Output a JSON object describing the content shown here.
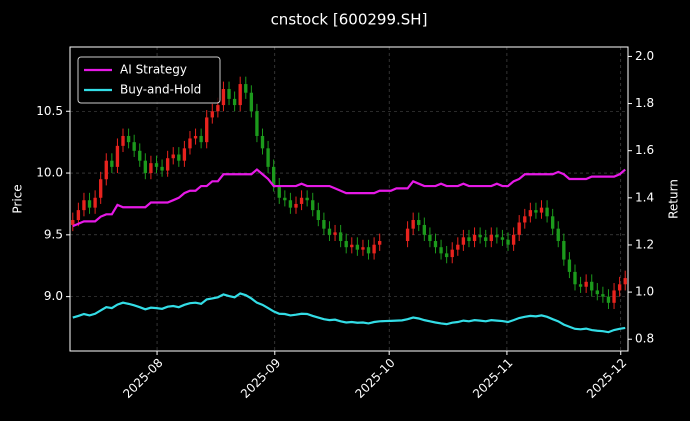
{
  "chart_data": {
    "type": "candlestick",
    "title": "cnstock [600299.SH]",
    "ylabel": "Price",
    "y2label": "Return",
    "categories": [
      null,
      null,
      null,
      null,
      null,
      null,
      null,
      null,
      null,
      null,
      null,
      null,
      null,
      null,
      null,
      null,
      null,
      null,
      null,
      null,
      null,
      null,
      null,
      null,
      null,
      null,
      null,
      null,
      null,
      null,
      null,
      null,
      null,
      null,
      null,
      null,
      null,
      null,
      null,
      null,
      null,
      null,
      null,
      null,
      null,
      null,
      null,
      null,
      null,
      null,
      null,
      null,
      null,
      null,
      null,
      null,
      null,
      null,
      null,
      null,
      null,
      null,
      null,
      null,
      null,
      null,
      null,
      null,
      null,
      null,
      null,
      null,
      null,
      null,
      null,
      null,
      null,
      null,
      null,
      null,
      null,
      null,
      null,
      null,
      null,
      null,
      null,
      null,
      null,
      null,
      null,
      null,
      null,
      null,
      null,
      null,
      null,
      null,
      null,
      null
    ],
    "open": [
      9.58,
      9.62,
      9.7,
      9.78,
      9.72,
      9.8,
      9.95,
      10.1,
      10.05,
      10.22,
      10.3,
      10.25,
      10.18,
      10.1,
      10.0,
      10.08,
      10.05,
      10.02,
      10.12,
      10.15,
      10.1,
      10.2,
      10.28,
      10.3,
      10.25,
      10.45,
      10.5,
      10.55,
      10.68,
      10.6,
      10.55,
      10.72,
      10.65,
      10.5,
      10.3,
      10.2,
      10.05,
      9.9,
      9.8,
      9.78,
      9.72,
      9.75,
      9.8,
      9.78,
      9.7,
      9.62,
      9.55,
      9.5,
      9.52,
      9.45,
      9.4,
      9.42,
      9.38,
      9.4,
      9.35,
      9.42,
      null,
      null,
      null,
      null,
      9.45,
      9.55,
      9.62,
      9.58,
      9.5,
      9.45,
      9.4,
      9.35,
      9.32,
      9.38,
      9.42,
      9.48,
      9.45,
      9.5,
      9.48,
      9.45,
      9.5,
      9.48,
      9.46,
      9.42,
      9.5,
      9.6,
      9.65,
      9.7,
      9.68,
      9.72,
      9.65,
      9.55,
      9.45,
      9.3,
      9.2,
      9.1,
      9.08,
      9.12,
      9.05,
      9.02,
      9.0,
      8.95,
      9.05,
      9.1
    ],
    "high": [
      9.68,
      9.76,
      9.84,
      9.84,
      9.86,
      10.01,
      10.16,
      10.16,
      10.28,
      10.36,
      10.36,
      10.31,
      10.24,
      10.16,
      10.14,
      10.14,
      10.11,
      10.18,
      10.21,
      10.21,
      10.26,
      10.34,
      10.36,
      10.36,
      10.51,
      10.56,
      10.61,
      10.74,
      10.74,
      10.66,
      10.78,
      10.78,
      10.71,
      10.56,
      10.36,
      10.26,
      10.11,
      9.96,
      9.86,
      9.84,
      9.81,
      9.86,
      9.86,
      9.84,
      9.76,
      9.68,
      9.61,
      9.58,
      9.58,
      9.51,
      9.48,
      9.48,
      9.46,
      9.46,
      9.48,
      9.51,
      null,
      null,
      null,
      null,
      9.61,
      9.68,
      9.68,
      9.64,
      9.56,
      9.51,
      9.46,
      9.41,
      9.44,
      9.48,
      9.54,
      9.54,
      9.56,
      9.56,
      9.54,
      9.56,
      9.56,
      9.54,
      9.52,
      9.56,
      9.66,
      9.71,
      9.76,
      9.76,
      9.78,
      9.78,
      9.71,
      9.61,
      9.51,
      9.36,
      9.26,
      9.16,
      9.18,
      9.18,
      9.11,
      9.08,
      9.06,
      9.11,
      9.16,
      9.21
    ],
    "low": [
      9.53,
      9.57,
      9.65,
      9.67,
      9.67,
      9.75,
      9.9,
      10.0,
      10.0,
      10.17,
      10.2,
      10.13,
      10.05,
      9.95,
      9.95,
      10.0,
      9.97,
      9.97,
      10.07,
      10.05,
      10.05,
      10.15,
      10.23,
      10.2,
      10.2,
      10.4,
      10.45,
      10.5,
      10.55,
      10.5,
      10.5,
      10.6,
      10.45,
      10.25,
      10.15,
      10.0,
      9.85,
      9.75,
      9.73,
      9.67,
      9.67,
      9.7,
      9.73,
      9.65,
      9.57,
      9.5,
      9.45,
      9.45,
      9.4,
      9.35,
      9.35,
      9.33,
      9.33,
      9.3,
      9.3,
      9.37,
      null,
      null,
      null,
      null,
      9.4,
      9.5,
      9.53,
      9.45,
      9.4,
      9.35,
      9.3,
      9.27,
      9.27,
      9.33,
      9.37,
      9.4,
      9.4,
      9.43,
      9.4,
      9.4,
      9.43,
      9.41,
      9.37,
      9.37,
      9.45,
      9.55,
      9.6,
      9.63,
      9.63,
      9.6,
      9.5,
      9.4,
      9.25,
      9.15,
      9.05,
      9.03,
      9.03,
      9.0,
      8.97,
      8.95,
      8.9,
      8.9,
      9.0,
      9.05
    ],
    "close": [
      9.62,
      9.7,
      9.78,
      9.72,
      9.8,
      9.95,
      10.1,
      10.05,
      10.22,
      10.3,
      10.25,
      10.18,
      10.1,
      10.0,
      10.08,
      10.05,
      10.02,
      10.12,
      10.15,
      10.1,
      10.2,
      10.28,
      10.3,
      10.25,
      10.45,
      10.5,
      10.55,
      10.68,
      10.6,
      10.55,
      10.72,
      10.65,
      10.5,
      10.3,
      10.2,
      10.05,
      9.9,
      9.8,
      9.78,
      9.72,
      9.75,
      9.8,
      9.78,
      9.7,
      9.62,
      9.55,
      9.5,
      9.52,
      9.45,
      9.4,
      9.42,
      9.38,
      9.4,
      9.35,
      9.42,
      9.45,
      null,
      null,
      null,
      null,
      9.55,
      9.62,
      9.58,
      9.5,
      9.45,
      9.4,
      9.35,
      9.32,
      9.38,
      9.42,
      9.48,
      9.45,
      9.5,
      9.48,
      9.45,
      9.5,
      9.48,
      9.46,
      9.42,
      9.5,
      9.6,
      9.65,
      9.7,
      9.68,
      9.72,
      9.65,
      9.55,
      9.45,
      9.3,
      9.2,
      9.1,
      9.08,
      9.12,
      9.05,
      9.02,
      9.0,
      8.95,
      9.05,
      9.1,
      9.15
    ],
    "up_color": "#e8231e",
    "down_color": "#1c9a1c",
    "series": [
      {
        "name": "AI Strategy",
        "color": "#e619e6",
        "axis": "y2",
        "values": [
          1.28,
          1.29,
          1.3,
          1.3,
          1.3,
          1.32,
          1.33,
          1.33,
          1.37,
          1.36,
          1.36,
          1.36,
          1.36,
          1.36,
          1.38,
          1.38,
          1.38,
          1.38,
          1.39,
          1.4,
          1.42,
          1.43,
          1.43,
          1.45,
          1.45,
          1.47,
          1.47,
          1.5,
          1.5,
          1.5,
          1.5,
          1.5,
          1.5,
          1.52,
          1.5,
          1.48,
          1.45,
          1.45,
          1.45,
          1.45,
          1.45,
          1.46,
          1.45,
          1.45,
          1.45,
          1.45,
          1.45,
          1.44,
          1.43,
          1.42,
          1.42,
          1.42,
          1.42,
          1.42,
          1.42,
          1.43,
          1.43,
          1.43,
          1.44,
          1.44,
          1.44,
          1.47,
          1.46,
          1.45,
          1.45,
          1.45,
          1.46,
          1.45,
          1.45,
          1.45,
          1.46,
          1.45,
          1.45,
          1.45,
          1.45,
          1.45,
          1.46,
          1.45,
          1.45,
          1.47,
          1.48,
          1.5,
          1.5,
          1.5,
          1.5,
          1.5,
          1.5,
          1.51,
          1.5,
          1.48,
          1.48,
          1.48,
          1.48,
          1.49,
          1.49,
          1.49,
          1.49,
          1.49,
          1.5,
          1.52
        ]
      },
      {
        "name": "Buy-and-Hold",
        "color": "#33dde6",
        "axis": "y2",
        "values": [
          0.892,
          0.899,
          0.907,
          0.901,
          0.908,
          0.922,
          0.936,
          0.932,
          0.947,
          0.955,
          0.95,
          0.944,
          0.936,
          0.927,
          0.934,
          0.932,
          0.929,
          0.938,
          0.941,
          0.936,
          0.946,
          0.953,
          0.955,
          0.95,
          0.969,
          0.973,
          0.978,
          0.99,
          0.983,
          0.978,
          0.994,
          0.987,
          0.973,
          0.955,
          0.946,
          0.932,
          0.918,
          0.908,
          0.907,
          0.901,
          0.904,
          0.908,
          0.907,
          0.899,
          0.892,
          0.885,
          0.881,
          0.883,
          0.876,
          0.871,
          0.873,
          0.87,
          0.871,
          0.867,
          0.873,
          0.876,
          0.877,
          0.878,
          0.879,
          0.88,
          0.885,
          0.892,
          0.888,
          0.881,
          0.876,
          0.871,
          0.867,
          0.864,
          0.87,
          0.873,
          0.879,
          0.876,
          0.881,
          0.879,
          0.876,
          0.881,
          0.879,
          0.877,
          0.873,
          0.881,
          0.89,
          0.895,
          0.899,
          0.897,
          0.901,
          0.895,
          0.885,
          0.876,
          0.862,
          0.853,
          0.844,
          0.842,
          0.845,
          0.839,
          0.836,
          0.834,
          0.83,
          0.839,
          0.844,
          0.848
        ]
      }
    ],
    "ylim": [
      8.56,
      11.02
    ],
    "yticks": [
      {
        "value": 9,
        "label": "9.0"
      },
      9.5,
      {
        "value": 10,
        "label": "10.0"
      },
      10.5
    ],
    "y2lim": [
      0.75,
      2.04
    ],
    "y2ticks": [
      0.8,
      {
        "value": 1,
        "label": "1.0"
      },
      1.2,
      1.4,
      1.6,
      1.8,
      {
        "value": 2,
        "label": "2.0"
      }
    ],
    "xticks": [
      {
        "value": 15.1,
        "label": "2025-08"
      },
      {
        "value": 36.2,
        "label": "2025-09"
      },
      {
        "value": 56.7,
        "label": "2025-10"
      },
      {
        "value": 77.8,
        "label": "2025-11"
      },
      {
        "value": 98.2,
        "label": "2025-12"
      }
    ],
    "grid": true,
    "legend": "upper left"
  }
}
